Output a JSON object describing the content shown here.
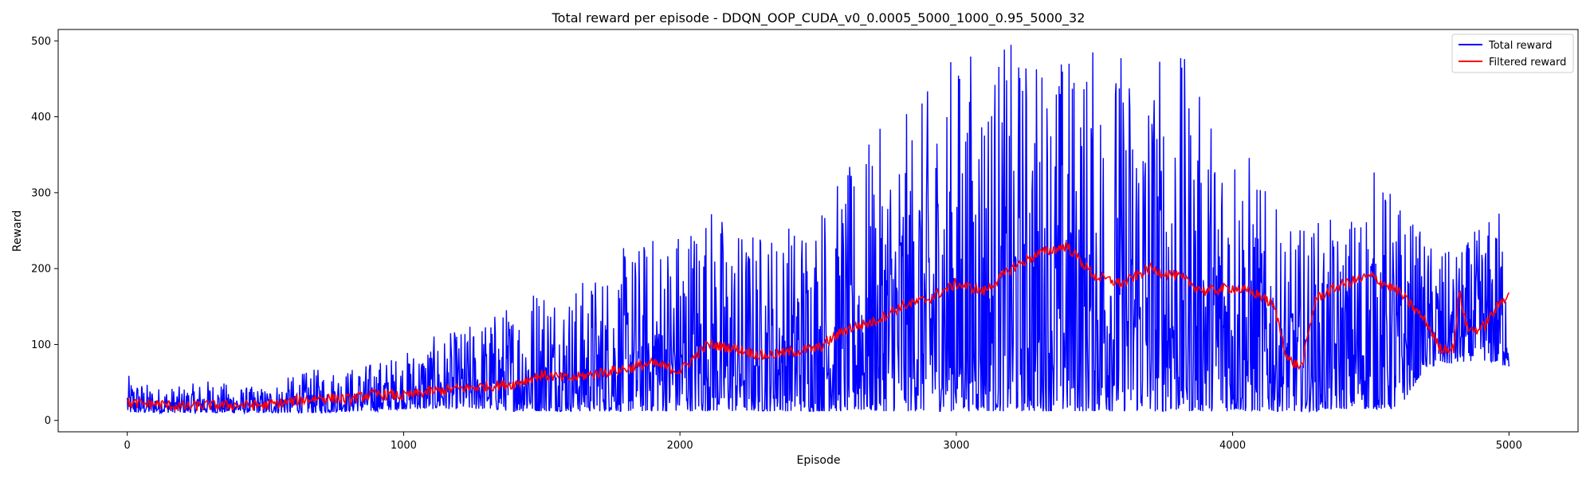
{
  "chart_data": {
    "type": "line",
    "title": "Total reward per episode - DDQN_OOP_CUDA_v0_0.0005_5000_1000_0.95_5000_32",
    "xlabel": "Episode",
    "ylabel": "Reward",
    "xlim": [
      -250,
      5250
    ],
    "ylim": [
      -15,
      515
    ],
    "xticks": [
      0,
      1000,
      2000,
      3000,
      4000,
      5000
    ],
    "yticks": [
      0,
      100,
      200,
      300,
      400,
      500
    ],
    "grid": false,
    "legend_position": "top-right",
    "series": [
      {
        "name": "Total reward",
        "color": "#0000ff",
        "note_envelope": "per-episode reward, approximately bounded by these envelopes",
        "x": [
          0,
          100,
          200,
          300,
          400,
          500,
          600,
          700,
          800,
          900,
          1000,
          1100,
          1200,
          1300,
          1400,
          1500,
          1600,
          1700,
          1800,
          1900,
          2000,
          2100,
          2200,
          2300,
          2400,
          2500,
          2600,
          2700,
          2800,
          2900,
          3000,
          3100,
          3200,
          3300,
          3400,
          3500,
          3600,
          3700,
          3800,
          3900,
          4000,
          4100,
          4200,
          4300,
          4400,
          4500,
          4600,
          4700,
          4800,
          4900,
          5000
        ],
        "low": [
          10,
          10,
          10,
          10,
          10,
          10,
          10,
          10,
          12,
          12,
          15,
          15,
          15,
          15,
          12,
          12,
          12,
          12,
          12,
          12,
          12,
          12,
          12,
          12,
          12,
          12,
          12,
          12,
          12,
          12,
          12,
          12,
          12,
          12,
          12,
          12,
          12,
          12,
          12,
          12,
          12,
          12,
          12,
          12,
          15,
          15,
          15,
          70,
          75,
          80,
          70
        ],
        "high": [
          60,
          45,
          45,
          55,
          45,
          45,
          60,
          70,
          70,
          80,
          90,
          110,
          120,
          140,
          160,
          200,
          180,
          200,
          230,
          250,
          270,
          300,
          260,
          260,
          270,
          300,
          330,
          380,
          400,
          440,
          500,
          500,
          500,
          500,
          500,
          500,
          500,
          500,
          500,
          420,
          420,
          320,
          250,
          270,
          260,
          340,
          300,
          240,
          220,
          260,
          300
        ]
      },
      {
        "name": "Filtered reward",
        "color": "#ff0000",
        "x": [
          0,
          100,
          200,
          300,
          400,
          500,
          600,
          700,
          800,
          900,
          1000,
          1100,
          1200,
          1300,
          1400,
          1500,
          1600,
          1700,
          1800,
          1900,
          2000,
          2100,
          2200,
          2300,
          2400,
          2500,
          2600,
          2700,
          2800,
          2900,
          3000,
          3100,
          3200,
          3300,
          3400,
          3500,
          3600,
          3700,
          3800,
          3900,
          4000,
          4100,
          4150,
          4200,
          4250,
          4300,
          4400,
          4500,
          4600,
          4700,
          4750,
          4800,
          4820,
          4850,
          4900,
          5000
        ],
        "y": [
          22,
          22,
          18,
          20,
          20,
          20,
          25,
          30,
          28,
          35,
          32,
          38,
          42,
          45,
          48,
          60,
          55,
          62,
          68,
          75,
          65,
          100,
          95,
          85,
          90,
          95,
          120,
          130,
          150,
          160,
          180,
          170,
          200,
          220,
          230,
          190,
          180,
          200,
          190,
          170,
          175,
          165,
          150,
          80,
          70,
          160,
          180,
          190,
          170,
          130,
          95,
          95,
          170,
          120,
          120,
          170
        ]
      }
    ]
  }
}
